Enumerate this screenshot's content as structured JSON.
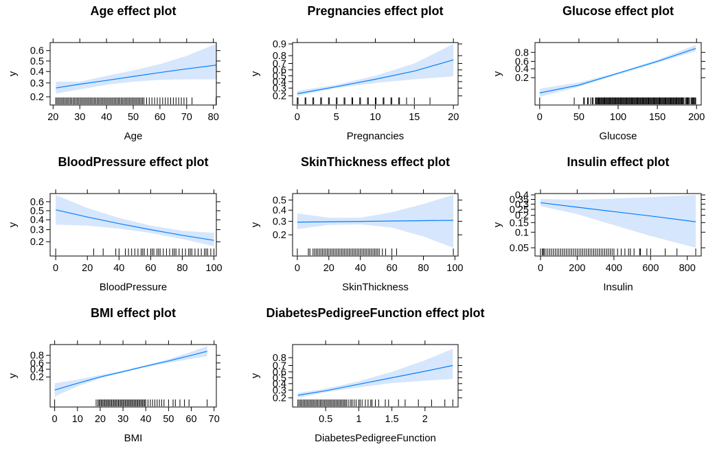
{
  "chart_data": [
    {
      "type": "line",
      "title": "Age effect plot",
      "xlabel": "Age",
      "ylabel": "y",
      "xlim": [
        18.9,
        81.1
      ],
      "ylim": [
        0.2,
        0.66
      ],
      "yscale": "logit",
      "xticks": [
        20,
        30,
        40,
        50,
        60,
        70,
        80
      ],
      "yticks": [
        0.2,
        0.3,
        0.4,
        0.5,
        0.6
      ],
      "series": [
        {
          "x": [
            21,
            30,
            40,
            50,
            60,
            70,
            81
          ],
          "fit": [
            0.26,
            0.29,
            0.32,
            0.355,
            0.39,
            0.425,
            0.46
          ],
          "lower": [
            0.22,
            0.25,
            0.285,
            0.31,
            0.325,
            0.33,
            0.33
          ],
          "upper": [
            0.31,
            0.31,
            0.36,
            0.41,
            0.47,
            0.55,
            0.66
          ]
        }
      ],
      "rug": [
        21,
        21.5,
        22,
        22.5,
        23,
        23.5,
        24,
        24.5,
        25,
        25.5,
        26,
        26.5,
        27,
        27.5,
        28,
        28.5,
        29,
        29.5,
        30,
        30.5,
        31,
        31.5,
        32,
        32.5,
        33,
        33.5,
        34,
        34.5,
        35,
        35.5,
        36,
        36.5,
        37,
        37.5,
        38,
        38.5,
        39,
        39.5,
        40,
        40.5,
        41,
        41.5,
        42,
        42.5,
        43,
        43.5,
        44,
        44.5,
        45,
        45.5,
        46,
        46.5,
        47,
        47.5,
        48,
        48.5,
        49,
        49.5,
        50,
        50.5,
        51,
        51.5,
        52,
        52.5,
        53,
        53.5,
        54,
        55,
        56,
        57,
        58,
        59,
        60,
        61,
        62,
        63,
        64,
        65,
        66,
        67,
        68,
        69,
        70,
        72,
        81
      ]
    },
    {
      "type": "line",
      "title": "Pregnancies effect plot",
      "xlabel": "Pregnancies",
      "ylabel": "y",
      "xlim": [
        -0.6,
        20.6
      ],
      "ylim": [
        0.19,
        0.9
      ],
      "yscale": "logit",
      "xticks": [
        0,
        5,
        10,
        15,
        20
      ],
      "yticks": [
        0.2,
        0.3,
        0.4,
        0.5,
        0.6,
        0.7,
        0.8,
        0.9
      ],
      "series": [
        {
          "x": [
            0,
            5,
            10,
            15,
            20
          ],
          "fit": [
            0.225,
            0.32,
            0.44,
            0.58,
            0.75
          ],
          "lower": [
            0.2,
            0.3,
            0.38,
            0.44,
            0.49
          ],
          "upper": [
            0.26,
            0.35,
            0.5,
            0.7,
            0.9
          ]
        }
      ],
      "rug": [
        0,
        0.1,
        1,
        1.1,
        2,
        2.1,
        3,
        3.1,
        4,
        4.1,
        5,
        5.1,
        6,
        6.1,
        7,
        7.1,
        8,
        8.1,
        9,
        9.1,
        10,
        10.1,
        11,
        11.1,
        12,
        12.1,
        13,
        13.1,
        14,
        15,
        17
      ]
    },
    {
      "type": "line",
      "title": "Glucose effect plot",
      "xlabel": "Glucose",
      "ylabel": "y",
      "xlim": [
        -6,
        206
      ],
      "ylim": [
        0.03,
        0.91
      ],
      "yscale": "logit",
      "xticks": [
        0,
        50,
        100,
        150,
        200
      ],
      "yticks": [
        0.2,
        0.4,
        0.6,
        0.8
      ],
      "series": [
        {
          "x": [
            0,
            50,
            100,
            150,
            199
          ],
          "fit": [
            0.045,
            0.1,
            0.29,
            0.6,
            0.86
          ],
          "lower": [
            0.03,
            0.085,
            0.26,
            0.56,
            0.82
          ],
          "upper": [
            0.07,
            0.13,
            0.31,
            0.64,
            0.9
          ]
        }
      ],
      "rug": [
        0,
        44,
        56,
        57,
        61,
        62,
        65,
        67,
        68,
        71,
        72,
        73,
        74,
        75,
        76,
        77,
        78,
        79,
        80,
        81,
        82,
        83,
        84,
        85,
        86,
        87,
        88,
        89,
        90,
        91,
        92,
        93,
        94,
        95,
        96,
        97,
        98,
        99,
        100,
        101,
        102,
        103,
        104,
        105,
        106,
        107,
        108,
        109,
        110,
        111,
        112,
        113,
        114,
        115,
        116,
        117,
        118,
        119,
        120,
        121,
        122,
        123,
        124,
        125,
        126,
        127,
        128,
        129,
        130,
        131,
        132,
        133,
        134,
        135,
        136,
        137,
        138,
        139,
        140,
        141,
        142,
        143,
        144,
        145,
        146,
        147,
        148,
        149,
        150,
        151,
        152,
        153,
        154,
        155,
        156,
        157,
        158,
        159,
        160,
        161,
        162,
        163,
        164,
        165,
        166,
        167,
        168,
        169,
        170,
        171,
        172,
        173,
        174,
        175,
        176,
        177,
        178,
        179,
        180,
        181,
        182,
        183,
        184,
        186,
        187,
        188,
        189,
        190,
        191,
        193,
        194,
        195,
        196,
        197,
        198,
        199
      ]
    },
    {
      "type": "line",
      "title": "BloodPressure effect plot",
      "xlabel": "BloodPressure",
      "ylabel": "y",
      "xlim": [
        -3.5,
        101.5
      ],
      "ylim": [
        0.16,
        0.67
      ],
      "yscale": "logit",
      "xticks": [
        0,
        20,
        40,
        60,
        80,
        100
      ],
      "yticks": [
        0.2,
        0.3,
        0.4,
        0.5,
        0.6
      ],
      "series": [
        {
          "x": [
            0,
            20,
            40,
            60,
            80,
            100
          ],
          "fit": [
            0.51,
            0.43,
            0.36,
            0.3,
            0.25,
            0.21
          ],
          "lower": [
            0.35,
            0.34,
            0.31,
            0.27,
            0.22,
            0.17
          ],
          "upper": [
            0.67,
            0.53,
            0.42,
            0.34,
            0.29,
            0.27
          ]
        }
      ],
      "rug": [
        0,
        24,
        30,
        38,
        40,
        44,
        46,
        48,
        50,
        52,
        54,
        55,
        56,
        58,
        60,
        61,
        62,
        64,
        65,
        66,
        68,
        70,
        72,
        74,
        75,
        76,
        78,
        80,
        82,
        84,
        85,
        86,
        88,
        90,
        92,
        94,
        95,
        96,
        98,
        100
      ]
    },
    {
      "type": "line",
      "title": "SkinThickness effect plot",
      "xlabel": "SkinThickness",
      "ylabel": "y",
      "xlim": [
        -3,
        102
      ],
      "ylim": [
        0.13,
        0.55
      ],
      "yscale": "logit",
      "xticks": [
        0,
        20,
        40,
        60,
        80,
        100
      ],
      "yticks": [
        0.2,
        0.3,
        0.4,
        0.5
      ],
      "series": [
        {
          "x": [
            0,
            20,
            40,
            60,
            80,
            99
          ],
          "fit": [
            0.293,
            0.296,
            0.299,
            0.302,
            0.305,
            0.308
          ],
          "lower": [
            0.24,
            0.27,
            0.275,
            0.25,
            0.19,
            0.13
          ],
          "upper": [
            0.37,
            0.33,
            0.33,
            0.38,
            0.46,
            0.55
          ]
        }
      ],
      "rug": [
        0,
        7,
        8,
        10,
        11,
        12,
        13,
        14,
        15,
        16,
        17,
        18,
        19,
        20,
        21,
        22,
        23,
        24,
        25,
        26,
        27,
        28,
        29,
        30,
        31,
        32,
        33,
        34,
        35,
        36,
        37,
        38,
        39,
        40,
        41,
        42,
        43,
        44,
        45,
        46,
        47,
        48,
        49,
        50,
        51,
        52,
        54,
        56,
        60,
        63,
        99
      ]
    },
    {
      "type": "line",
      "title": "Insulin effect plot",
      "xlabel": "Insulin",
      "ylabel": "y",
      "xlim": [
        -30,
        876
      ],
      "ylim": [
        0.05,
        0.4
      ],
      "yscale": "logit",
      "xticks": [
        0,
        200,
        400,
        600,
        800
      ],
      "yticks": [
        0.05,
        0.1,
        0.15,
        0.2,
        0.25,
        0.3,
        0.35,
        0.4
      ],
      "series": [
        {
          "x": [
            0,
            200,
            400,
            600,
            846
          ],
          "fit": [
            0.315,
            0.27,
            0.23,
            0.195,
            0.155
          ],
          "lower": [
            0.28,
            0.21,
            0.135,
            0.085,
            0.05
          ],
          "upper": [
            0.355,
            0.345,
            0.36,
            0.375,
            0.4
          ]
        }
      ],
      "rug": [
        0,
        10,
        15,
        20,
        30,
        40,
        50,
        60,
        70,
        80,
        90,
        100,
        110,
        120,
        130,
        140,
        150,
        160,
        170,
        180,
        190,
        200,
        210,
        220,
        230,
        240,
        250,
        260,
        270,
        280,
        290,
        300,
        310,
        320,
        330,
        340,
        350,
        360,
        370,
        380,
        390,
        400,
        420,
        440,
        460,
        480,
        490,
        510,
        540,
        545,
        580,
        600,
        680,
        744,
        846
      ]
    },
    {
      "type": "line",
      "title": "BMI effect plot",
      "xlabel": "BMI",
      "ylabel": "y",
      "xlim": [
        -2,
        71
      ],
      "ylim": [
        0.015,
        0.93
      ],
      "yscale": "logit",
      "xticks": [
        0,
        10,
        20,
        30,
        40,
        50,
        60,
        70
      ],
      "yticks": [
        0.2,
        0.4,
        0.6,
        0.8
      ],
      "series": [
        {
          "x": [
            0,
            10,
            20,
            30,
            40,
            50,
            60,
            67
          ],
          "fit": [
            0.045,
            0.1,
            0.2,
            0.33,
            0.5,
            0.66,
            0.8,
            0.87
          ],
          "lower": [
            0.02,
            0.07,
            0.17,
            0.31,
            0.46,
            0.6,
            0.72,
            0.78
          ],
          "upper": [
            0.1,
            0.15,
            0.24,
            0.36,
            0.53,
            0.71,
            0.86,
            0.93
          ]
        }
      ],
      "rug": [
        0,
        18.2,
        19,
        19.5,
        20,
        20.5,
        21,
        21.5,
        22,
        22.5,
        23,
        23.5,
        24,
        24.5,
        25,
        25.5,
        26,
        26.5,
        27,
        27.5,
        28,
        28.5,
        29,
        29.5,
        30,
        30.5,
        31,
        31.5,
        32,
        32.5,
        33,
        33.5,
        34,
        34.5,
        35,
        35.5,
        36,
        36.5,
        37,
        37.5,
        38,
        38.5,
        39,
        39.5,
        40,
        41,
        42,
        43,
        44,
        45,
        46,
        47,
        48,
        50,
        52,
        53,
        55,
        57,
        59,
        67
      ]
    },
    {
      "type": "line",
      "title": "DiabetesPedigreeFunction effect plot",
      "xlabel": "DiabetesPedigreeFunction",
      "ylabel": "y",
      "xlim": [
        0.0,
        2.5
      ],
      "ylim": [
        0.19,
        0.9
      ],
      "yscale": "logit",
      "xticks": [
        0.5,
        1.0,
        1.5,
        2.0
      ],
      "yticks": [
        0.2,
        0.3,
        0.4,
        0.5,
        0.6,
        0.7,
        0.8
      ],
      "series": [
        {
          "x": [
            0.08,
            0.5,
            1.0,
            1.5,
            2.0,
            2.42
          ],
          "fit": [
            0.23,
            0.29,
            0.39,
            0.5,
            0.61,
            0.7
          ],
          "lower": [
            0.2,
            0.27,
            0.34,
            0.41,
            0.45,
            0.48
          ],
          "upper": [
            0.26,
            0.32,
            0.44,
            0.6,
            0.77,
            0.88
          ]
        }
      ],
      "rug": [
        0.08,
        0.1,
        0.12,
        0.14,
        0.16,
        0.18,
        0.2,
        0.22,
        0.24,
        0.26,
        0.28,
        0.3,
        0.32,
        0.34,
        0.36,
        0.38,
        0.4,
        0.42,
        0.44,
        0.46,
        0.48,
        0.5,
        0.52,
        0.54,
        0.56,
        0.58,
        0.6,
        0.62,
        0.64,
        0.66,
        0.68,
        0.7,
        0.72,
        0.74,
        0.76,
        0.78,
        0.8,
        0.82,
        0.85,
        0.88,
        0.9,
        0.93,
        0.96,
        1.0,
        1.02,
        1.05,
        1.1,
        1.14,
        1.18,
        1.2,
        1.25,
        1.3,
        1.4,
        1.45,
        1.6,
        1.7,
        1.9,
        2.1,
        2.3,
        2.42
      ]
    }
  ],
  "colors": {
    "fit_line": "#0080ff",
    "band": "#d6e6fc",
    "axis": "#000000"
  }
}
